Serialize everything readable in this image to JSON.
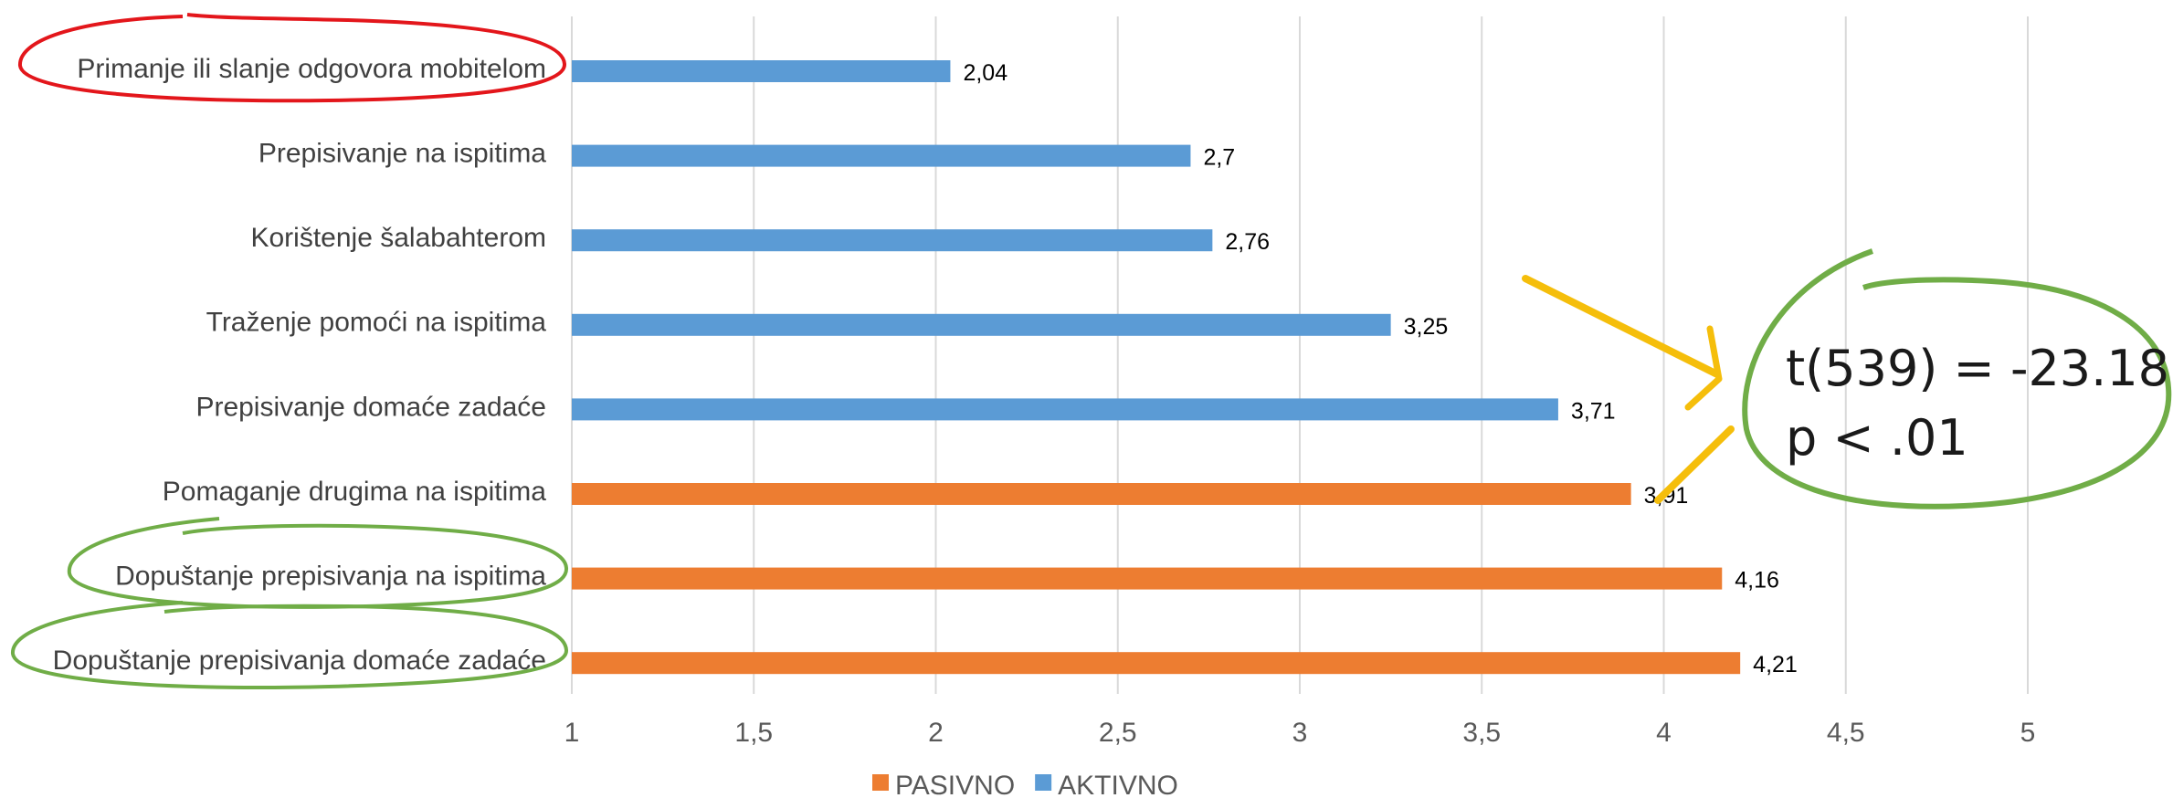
{
  "chart_data": {
    "type": "bar",
    "orientation": "horizontal",
    "categories": [
      "Primanje ili slanje odgovora mobitelom",
      "Prepisivanje na ispitima",
      "Korištenje šalabahterom",
      "Traženje pomoći na ispitima",
      "Prepisivanje domaće zadaće",
      "Pomaganje drugima na ispitima",
      "Dopuštanje prepisivanja na ispitima",
      "Dopuštanje prepisivanja domaće zadaće"
    ],
    "values": [
      2.04,
      2.7,
      2.76,
      3.25,
      3.71,
      3.91,
      4.16,
      4.21
    ],
    "value_labels": [
      "2,04",
      "2,7",
      "2,76",
      "3,25",
      "3,71",
      "3,91",
      "4,16",
      "4,21"
    ],
    "bar_series": [
      "AKTIVNO",
      "AKTIVNO",
      "AKTIVNO",
      "AKTIVNO",
      "AKTIVNO",
      "PASIVNO",
      "PASIVNO",
      "PASIVNO"
    ],
    "series": [
      {
        "name": "PASIVNO",
        "color": "#ED7D31"
      },
      {
        "name": "AKTIVNO",
        "color": "#5B9BD5"
      }
    ],
    "xlim": [
      1,
      5
    ],
    "x_ticks": [
      1,
      1.5,
      2,
      2.5,
      3,
      3.5,
      4,
      4.5,
      5
    ],
    "x_tick_labels": [
      "1",
      "1,5",
      "2",
      "2,5",
      "3",
      "3,5",
      "4",
      "4,5",
      "5"
    ],
    "grid": "vertical",
    "legend_position": "bottom",
    "title": "",
    "xlabel": "",
    "ylabel": "",
    "annotations": {
      "stat_lines": [
        "t(539) = -23.18",
        "p < .01"
      ],
      "highlight_red": "Primanje ili slanje odgovora mobitelom",
      "highlight_green": [
        "Dopuštanje prepisivanja na ispitima",
        "Dopuštanje prepisivanja domaće zadaće"
      ],
      "circle_colors": {
        "red": "#E3161B",
        "green": "#70AD47",
        "arrow": "#F5BE0B"
      }
    }
  }
}
